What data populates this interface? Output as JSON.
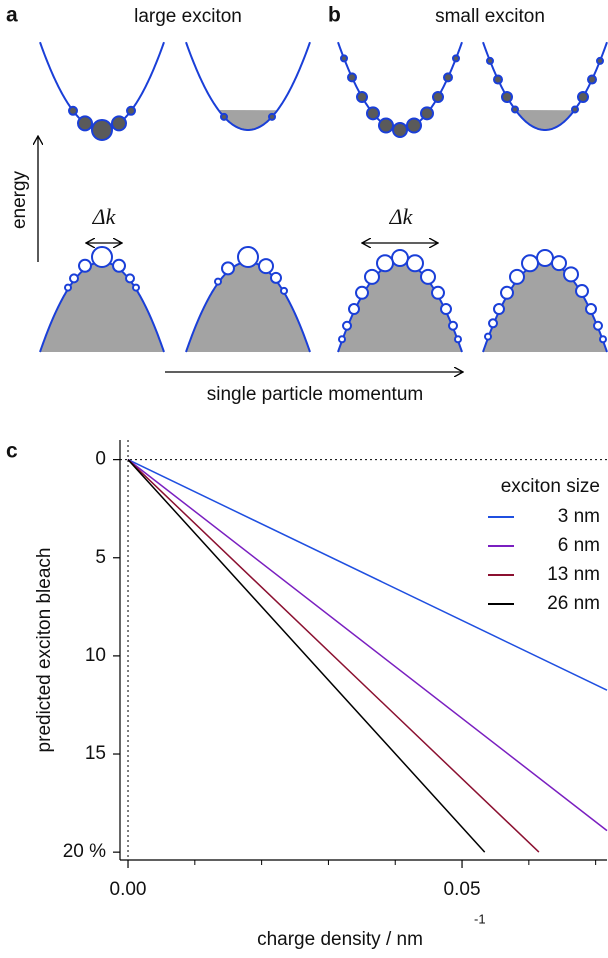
{
  "diagram": {
    "panel_a": "a",
    "title_a": "large exciton",
    "panel_b": "b",
    "title_b": "small exciton",
    "energy_label": "energy",
    "delta_k_a": "Δk",
    "delta_k_b": "Δk",
    "momentum_label": "single particle momentum"
  },
  "chart_data": {
    "type": "line",
    "panel": "c",
    "ylabel": "predicted exciton bleach",
    "xlabel": "charge density / nm",
    "xlabel_sup": "-1",
    "xlim": [
      -0.0012,
      0.0717
    ],
    "ylim": [
      -1,
      20.4
    ],
    "y_inverted": true,
    "xticks": [
      {
        "value": 0,
        "label": "0.00"
      },
      {
        "value": 0.05,
        "label": "0.05"
      }
    ],
    "xminor": [
      0.01,
      0.02,
      0.03,
      0.04,
      0.06,
      0.07
    ],
    "yticks": [
      0,
      5,
      10,
      15,
      {
        "value": 20,
        "label": "20 %"
      }
    ],
    "hline": 0,
    "vline": 0,
    "legend_title": "exciton size",
    "legend": "upper right",
    "series": [
      {
        "name": "3 nm",
        "color": "#1f4fe0",
        "x": [
          0,
          0.0717
        ],
        "values": [
          0,
          11.75
        ]
      },
      {
        "name": "6 nm",
        "color": "#7a1fc0",
        "x": [
          0,
          0.0717
        ],
        "values": [
          0,
          18.9
        ]
      },
      {
        "name": "13 nm",
        "color": "#8b1030",
        "x": [
          0,
          0.0615
        ],
        "values": [
          0,
          20
        ]
      },
      {
        "name": "26 nm",
        "color": "#000000",
        "x": [
          0,
          0.0534
        ],
        "values": [
          0,
          20
        ]
      }
    ]
  }
}
